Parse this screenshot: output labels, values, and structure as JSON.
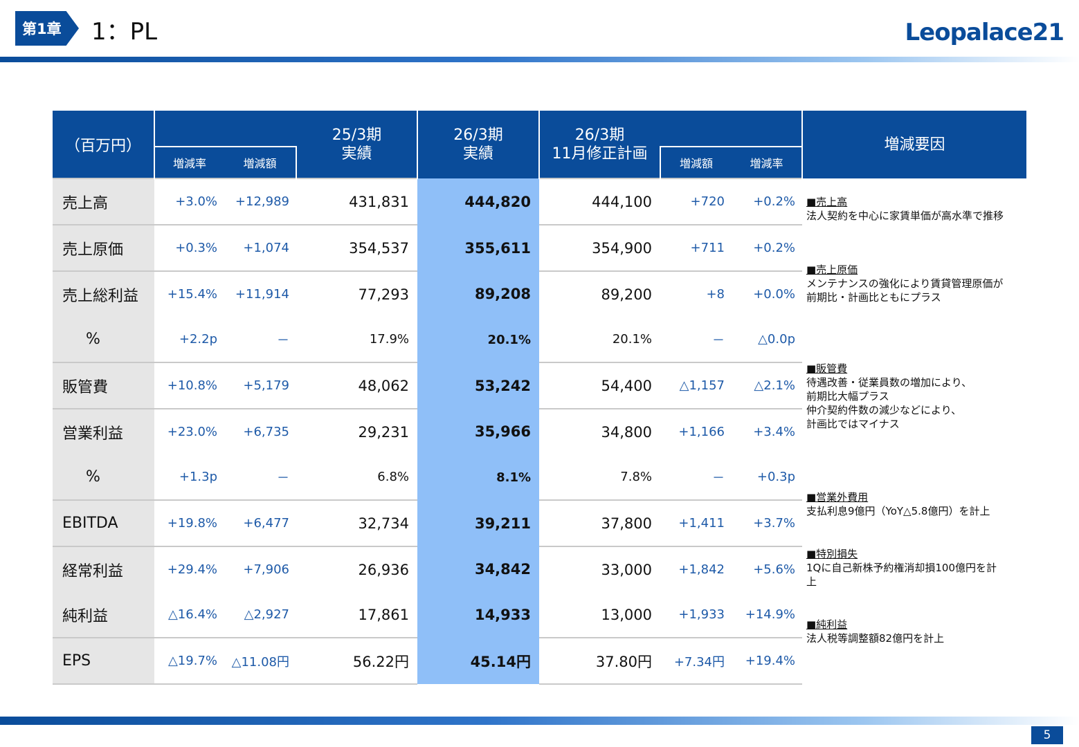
{
  "header": {
    "chapter_badge": "第1章",
    "title": "1：PL",
    "logo_text": "Leopalace21"
  },
  "table": {
    "unit_label": "（百万円）",
    "col_fy25": [
      "25/3期",
      "実績"
    ],
    "col_fy26": [
      "26/3期",
      "実績"
    ],
    "col_plan": [
      "26/3期",
      "11月修正計画"
    ],
    "col_factors": "増減要因",
    "sub_left": [
      "増減率",
      "増減額"
    ],
    "sub_right": [
      "増減額",
      "増減率"
    ],
    "rows": [
      {
        "label": "売上高",
        "yoy_rate": "+3.0%",
        "yoy_amount": "+12,989",
        "fy25": "431,831",
        "fy26": "444,820",
        "plan": "444,100",
        "plan_amount": "+720",
        "plan_rate": "+0.2%"
      },
      {
        "label": "売上原価",
        "yoy_rate": "+0.3%",
        "yoy_amount": "+1,074",
        "fy25": "354,537",
        "fy26": "355,611",
        "plan": "354,900",
        "plan_amount": "+711",
        "plan_rate": "+0.2%"
      },
      {
        "label": "売上総利益",
        "yoy_rate": "+15.4%",
        "yoy_amount": "+11,914",
        "fy25": "77,293",
        "fy26": "89,208",
        "plan": "89,200",
        "plan_amount": "+8",
        "plan_rate": "+0.0%"
      },
      {
        "label": "%",
        "yoy_rate": "+2.2p",
        "yoy_amount": "－",
        "fy25": "17.9%",
        "fy26": "20.1%",
        "plan": "20.1%",
        "plan_amount": "－",
        "plan_rate": "△0.0p"
      },
      {
        "label": "販管費",
        "yoy_rate": "+10.8%",
        "yoy_amount": "+5,179",
        "fy25": "48,062",
        "fy26": "53,242",
        "plan": "54,400",
        "plan_amount": "△1,157",
        "plan_rate": "△2.1%"
      },
      {
        "label": "営業利益",
        "yoy_rate": "+23.0%",
        "yoy_amount": "+6,735",
        "fy25": "29,231",
        "fy26": "35,966",
        "plan": "34,800",
        "plan_amount": "+1,166",
        "plan_rate": "+3.4%"
      },
      {
        "label": "%",
        "yoy_rate": "+1.3p",
        "yoy_amount": "－",
        "fy25": "6.8%",
        "fy26": "8.1%",
        "plan": "7.8%",
        "plan_amount": "－",
        "plan_rate": "+0.3p"
      },
      {
        "label": "EBITDA",
        "yoy_rate": "+19.8%",
        "yoy_amount": "+6,477",
        "fy25": "32,734",
        "fy26": "39,211",
        "plan": "37,800",
        "plan_amount": "+1,411",
        "plan_rate": "+3.7%"
      },
      {
        "label": "経常利益",
        "yoy_rate": "+29.4%",
        "yoy_amount": "+7,906",
        "fy25": "26,936",
        "fy26": "34,842",
        "plan": "33,000",
        "plan_amount": "+1,842",
        "plan_rate": "+5.6%"
      },
      {
        "label": "純利益",
        "yoy_rate": "△16.4%",
        "yoy_amount": "△2,927",
        "fy25": "17,861",
        "fy26": "14,933",
        "plan": "13,000",
        "plan_amount": "+1,933",
        "plan_rate": "+14.9%"
      },
      {
        "label": "EPS",
        "yoy_rate": "△19.7%",
        "yoy_amount": "△11.08円",
        "fy25": "56.22円",
        "fy26": "45.14円",
        "plan": "37.80円",
        "plan_amount": "+7.34円",
        "plan_rate": "+19.4%"
      }
    ]
  },
  "factors": [
    {
      "title": "■売上高",
      "lines": [
        "法人契約を中心に家賃単価が高水準で推移"
      ]
    },
    {
      "title": "■売上原価",
      "lines": [
        "メンテナンスの強化により賃貸管理原価が",
        "前期比・計画比ともにプラス"
      ]
    },
    {
      "title": "■販管費",
      "lines": [
        "待遇改善・従業員数の増加により、",
        "前期比大幅プラス",
        "仲介契約件数の減少などにより、",
        "計画比ではマイナス"
      ]
    },
    {
      "title": "■営業外費用",
      "lines": [
        "支払利息9億円（YoY△5.8億円）を計上"
      ]
    },
    {
      "title": "■特別損失",
      "lines": [
        "1Qに自己新株予約権消却損100億円を計",
        "上"
      ]
    },
    {
      "title": "■純利益",
      "lines": [
        "法人税等調整額82億円を計上"
      ]
    }
  ],
  "footer": {
    "page_number": "5"
  },
  "colors": {
    "brand_blue": "#0a4c9a",
    "highlight": "#8fbff8",
    "delta_text": "#1e5aa8",
    "label_bg": "#e6e6e6"
  }
}
